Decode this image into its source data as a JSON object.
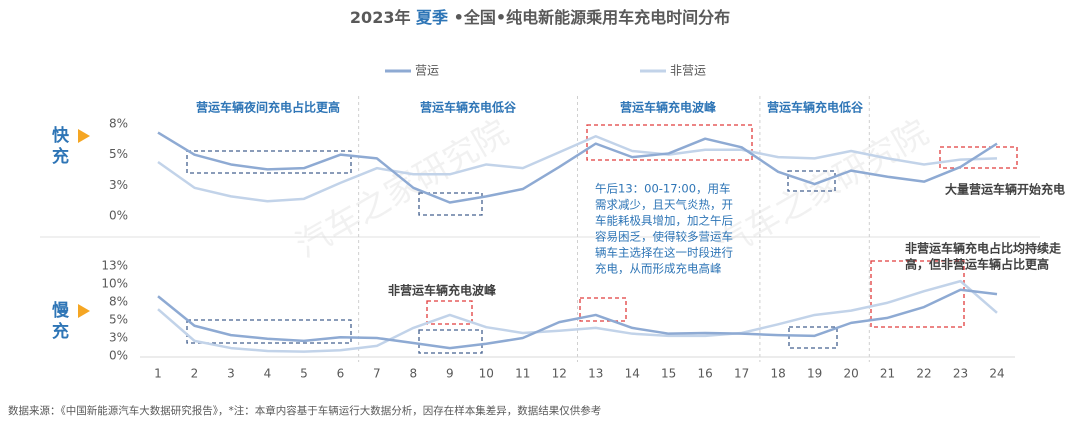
{
  "title_parts": [
    "2023年 ",
    "夏季",
    " •全国•纯电新能源乘用车充电时间分布"
  ],
  "watermark": "汽车之家研究院",
  "source": "数据来源：《中国新能源汽车大数据研究报告》，*注：本章内容基于车辆运行大数据分析，因存在样本集差异，数据结果仅供参考",
  "section_labels": [
    "营运车辆夜间充电占比更高",
    "营运车辆充电低谷",
    "营运车辆充电波峰",
    "营运车辆充电低谷"
  ],
  "annotations": {
    "afternoon": [
      "午后13：00-17:00，用车",
      "需求减少，且天气炎热，开",
      "车能耗极具增加，加之午后",
      "容易困乏，使得较多营运车",
      "辆车主选择在这一时段进行",
      "充电，从而形成充电高峰"
    ],
    "evening": "大量营运车辆开始充电",
    "non_peak": "非营运车辆充电波峰",
    "night": [
      "非营运车辆充电占比均持续走",
      "高，但非营运车辆占比更高"
    ]
  },
  "chart_data": [
    {
      "type": "line",
      "panel_label": "快充",
      "ylim": [
        0,
        7.5
      ],
      "yticks": [
        {
          "value": 0,
          "label": "0%"
        },
        {
          "value": 2.5,
          "label": "3%"
        },
        {
          "value": 5,
          "label": "5%"
        },
        {
          "value": 7.5,
          "label": "8%"
        }
      ],
      "series": [
        {
          "name": "营运",
          "color": "#8eaad3",
          "values": [
            6.8,
            5.0,
            4.2,
            3.8,
            3.9,
            5.0,
            4.7,
            2.3,
            1.1,
            1.6,
            2.2,
            4.0,
            5.9,
            4.8,
            5.1,
            6.3,
            5.6,
            3.6,
            2.6,
            3.7,
            3.2,
            2.8,
            4.0,
            5.9
          ]
        },
        {
          "name": "非营运",
          "color": "#c2d3e9",
          "values": [
            4.4,
            2.3,
            1.6,
            1.2,
            1.4,
            2.7,
            3.9,
            3.4,
            3.4,
            4.2,
            3.9,
            5.2,
            6.5,
            5.3,
            5.0,
            5.4,
            5.4,
            4.8,
            4.7,
            5.3,
            4.7,
            4.2,
            4.6,
            4.7
          ]
        }
      ]
    },
    {
      "type": "line",
      "panel_label": "慢充",
      "categories": [
        1,
        2,
        3,
        4,
        5,
        6,
        7,
        8,
        9,
        10,
        11,
        12,
        13,
        14,
        15,
        16,
        17,
        18,
        19,
        20,
        21,
        22,
        23,
        24
      ],
      "ylim": [
        0,
        12.5
      ],
      "yticks": [
        {
          "value": 0,
          "label": "0%"
        },
        {
          "value": 2.5,
          "label": "3%"
        },
        {
          "value": 5,
          "label": "5%"
        },
        {
          "value": 7.5,
          "label": "8%"
        },
        {
          "value": 10,
          "label": "10%"
        },
        {
          "value": 12.5,
          "label": "13%"
        }
      ],
      "series": [
        {
          "color": "#8eaad3",
          "values": [
            8.3,
            4.2,
            2.9,
            2.4,
            2.1,
            2.6,
            2.5,
            1.8,
            1.1,
            1.7,
            2.5,
            4.7,
            5.7,
            3.9,
            3.1,
            3.2,
            3.1,
            2.9,
            2.8,
            4.6,
            5.3,
            6.8,
            9.2,
            8.6
          ]
        },
        {
          "color": "#c2d3e9",
          "values": [
            6.5,
            2.1,
            1.1,
            0.7,
            0.6,
            0.8,
            1.4,
            3.9,
            5.7,
            4.0,
            3.2,
            3.5,
            3.9,
            3.1,
            2.8,
            2.8,
            3.2,
            4.4,
            5.7,
            6.3,
            7.4,
            9.0,
            10.4,
            6.0
          ]
        }
      ]
    }
  ]
}
